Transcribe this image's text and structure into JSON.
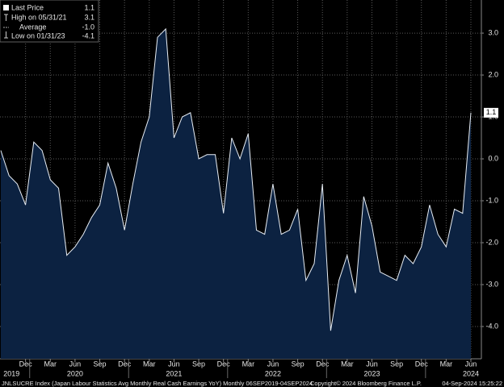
{
  "chart_data": {
    "type": "area",
    "categories": [
      null,
      null,
      null,
      "Dec",
      null,
      null,
      "Mar",
      null,
      null,
      "Jun",
      null,
      null,
      "Sep",
      null,
      null,
      "Dec",
      null,
      null,
      "Mar",
      null,
      null,
      "Jun",
      null,
      null,
      "Sep",
      null,
      null,
      "Dec",
      null,
      null,
      "Mar",
      null,
      null,
      "Jun",
      null,
      null,
      "Sep",
      null,
      null,
      "Dec",
      null,
      null,
      "Mar",
      null,
      null,
      "Jun",
      null,
      null,
      "Sep",
      null,
      null,
      "Dec",
      null,
      null,
      "Mar",
      null,
      null,
      "Jun"
    ],
    "years": [
      "2019",
      "2020",
      "2021",
      "2022",
      "2023",
      "2024"
    ],
    "series": [
      {
        "name": "Last Price",
        "color": "#e8eef5",
        "fill": "#0c2241",
        "values": [
          0.2,
          -0.4,
          -0.6,
          -1.1,
          0.4,
          0.2,
          -0.5,
          -0.7,
          -2.3,
          -2.1,
          -1.8,
          -1.4,
          -1.1,
          -0.1,
          -0.7,
          -1.7,
          -0.6,
          0.4,
          1.0,
          2.9,
          3.1,
          0.5,
          1.0,
          1.1,
          0.0,
          0.1,
          0.1,
          -1.3,
          0.5,
          0.0,
          0.6,
          -1.7,
          -1.8,
          -0.6,
          -1.8,
          -1.7,
          -1.2,
          -2.9,
          -2.5,
          -0.6,
          -4.1,
          -2.9,
          -2.3,
          -3.2,
          -0.9,
          -1.6,
          -2.7,
          -2.8,
          -2.9,
          -2.3,
          -2.5,
          -2.1,
          -1.1,
          -1.8,
          -2.1,
          -1.2,
          -1.3,
          1.1
        ]
      }
    ],
    "legend": [
      {
        "name": "Last Price",
        "value": 1.1
      },
      {
        "name": "High on 05/31/21",
        "value": 3.1
      },
      {
        "name": "Average",
        "value": -1.0,
        "value_label": "-1.0"
      },
      {
        "name": "Low on 01/31/23",
        "value": -4.1
      }
    ],
    "ylim": [
      -4.77,
      3.79
    ],
    "yticks": [
      {
        "value": 3,
        "label": "3.0"
      },
      {
        "value": 2,
        "label": "2.0"
      },
      {
        "value": 1,
        "label": "1.0"
      },
      {
        "value": 0,
        "label": "0.0"
      },
      {
        "value": -1,
        "label": "-1.0"
      },
      {
        "value": -2,
        "label": "-2.0"
      },
      {
        "value": -3,
        "label": "-3.0"
      },
      {
        "value": -4,
        "label": "-4.0"
      }
    ],
    "grid": true,
    "footer": {
      "left": "JNLSUCRE Index (Japan Labour Statistics Avg Monthly Real Cash Earnings YoY)  Monthly 06SEP2019-04SEP2024",
      "middle": "Copyright© 2024 Bloomberg Finance L.P.",
      "right": "04-Sep-2024 15:25:22"
    }
  }
}
